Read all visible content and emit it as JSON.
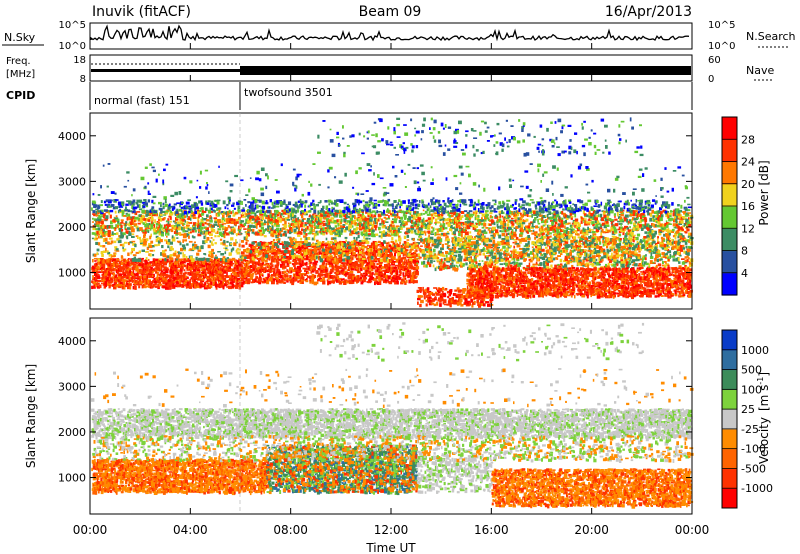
{
  "header": {
    "station": "Inuvik (fitACF)",
    "beam": "Beam 09",
    "date": "16/Apr/2013"
  },
  "nsky_panel": {
    "label": "N.Sky",
    "right_label": "N.Search",
    "ticks_left": [
      "10^5",
      "10^0"
    ],
    "ticks_right": [
      "10^5",
      "10^0"
    ]
  },
  "freq_panel": {
    "label_line1": "Freq.",
    "label_line2": "[MHz]",
    "right_label": "Nave",
    "ticks_left": [
      "18",
      "8"
    ],
    "ticks_right": [
      "60",
      "0"
    ]
  },
  "cpid": {
    "label": "CPID",
    "modes": [
      {
        "name": "normal (fast) 151",
        "start_hour": 0,
        "end_hour": 6
      },
      {
        "name": "twofsound 3501",
        "start_hour": 6,
        "end_hour": 24
      }
    ]
  },
  "chart_data": [
    {
      "type": "heatmap",
      "name": "Power",
      "ylabel": "Slant Range [km]",
      "xlabel": "Time UT",
      "xlim": [
        0,
        24
      ],
      "ylim": [
        200,
        4500
      ],
      "yticks": [
        "1000",
        "2000",
        "3000",
        "4000"
      ],
      "colorbar": {
        "label": "Power [dB]",
        "ticks": [
          "4",
          "8",
          "12",
          "16",
          "20",
          "24",
          "28"
        ],
        "colors": [
          "#0000ff",
          "#2850a0",
          "#3c8c64",
          "#64c832",
          "#f0d21e",
          "#ff7800",
          "#ff3200",
          "#ff0000"
        ]
      },
      "bands": [
        {
          "from_hour": 0,
          "to_hour": 6,
          "range_from": 700,
          "range_to": 1300,
          "level": "high"
        },
        {
          "from_hour": 6,
          "to_hour": 13,
          "range_from": 800,
          "range_to": 1700,
          "level": "high"
        },
        {
          "from_hour": 0,
          "to_hour": 24,
          "range_from": 1800,
          "range_to": 2400,
          "level": "medium"
        },
        {
          "from_hour": 15,
          "to_hour": 24,
          "range_from": 500,
          "range_to": 1100,
          "level": "high"
        }
      ]
    },
    {
      "type": "heatmap",
      "name": "Velocity",
      "ylabel": "Slant Range [km]",
      "xlabel": "Time UT",
      "xlim": [
        0,
        24
      ],
      "ylim": [
        200,
        4500
      ],
      "yticks": [
        "1000",
        "2000",
        "3000",
        "4000"
      ],
      "xticks": [
        "00:00",
        "04:00",
        "08:00",
        "12:00",
        "16:00",
        "20:00",
        "00:00"
      ],
      "colorbar": {
        "label_main": "Velocity",
        "label_unit": "[m s",
        "label_sup": "-1",
        "label_close": "]",
        "ticks": [
          "1000",
          "500",
          "100",
          "25",
          "-25",
          "-100",
          "-500",
          "-1000"
        ],
        "colors": [
          "#0a3cc8",
          "#2f6ea0",
          "#3c8c5a",
          "#7dd23c",
          "#c8c8c8",
          "#ff8c00",
          "#ff6400",
          "#ff3200",
          "#ff0000"
        ]
      },
      "bands": [
        {
          "from_hour": 0,
          "to_hour": 24,
          "range_from": 1900,
          "range_to": 2500,
          "level": "-25 to 25"
        },
        {
          "from_hour": 0,
          "to_hour": 7,
          "range_from": 700,
          "range_to": 1400,
          "level": "-500 to -100"
        },
        {
          "from_hour": 7,
          "to_hour": 13,
          "range_from": 700,
          "range_to": 1700,
          "level": "100 to 500"
        },
        {
          "from_hour": 16,
          "to_hour": 24,
          "range_from": 400,
          "range_to": 1200,
          "level": "-500 to -100"
        }
      ]
    }
  ]
}
